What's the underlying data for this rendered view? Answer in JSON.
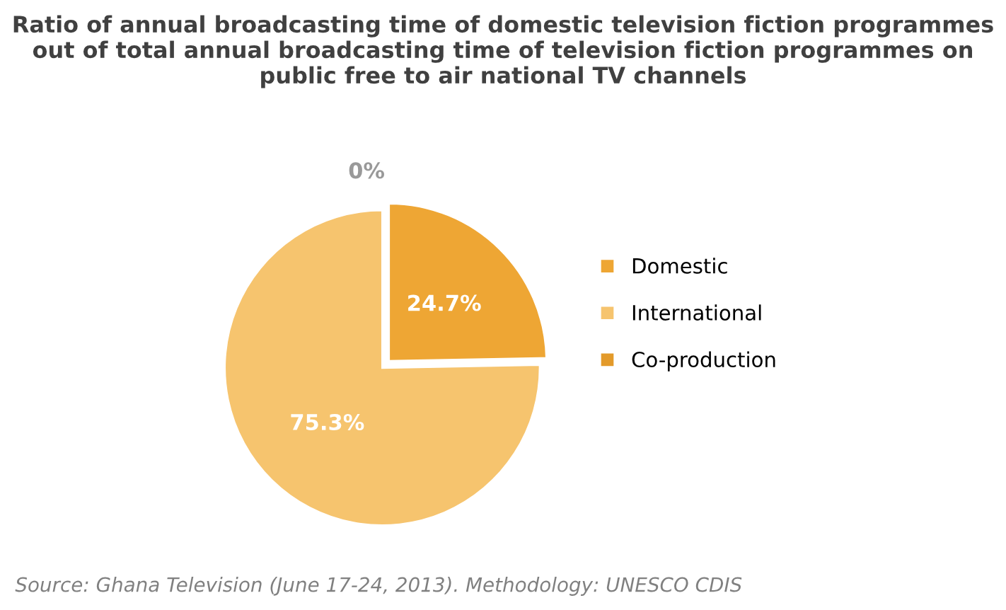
{
  "chart_data": {
    "type": "pie",
    "title": "Ratio of annual broadcasting time of domestic television fiction programmes out of total annual broadcasting time of television fiction programmes on public free to air national TV channels",
    "categories": [
      "Domestic",
      "International",
      "Co-production"
    ],
    "values": [
      24.7,
      75.3,
      0
    ],
    "value_labels": [
      "24.7%",
      "75.3%",
      "0%"
    ],
    "colors": [
      "#eea634",
      "#f6c46e",
      "#e39a2a"
    ],
    "legend": "right",
    "annotations": [
      "Source: Ghana Television (June 17-24, 2013). Methodology: UNESCO CDIS"
    ]
  }
}
